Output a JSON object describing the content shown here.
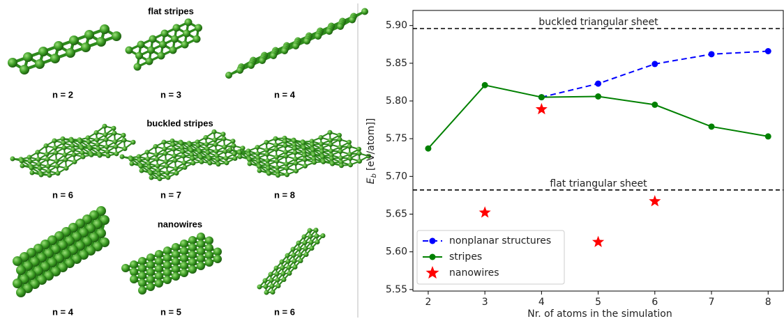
{
  "figure_panels": [
    {
      "title": "flat stripes",
      "labels": [
        "n = 2",
        "n = 3",
        "n = 4"
      ]
    },
    {
      "title": "buckled stripes",
      "labels": [
        "n = 6",
        "n = 7",
        "n = 8"
      ]
    },
    {
      "title": "nanowires",
      "labels": [
        "n = 4",
        "n = 5",
        "n = 6"
      ]
    }
  ],
  "chart_data": {
    "type": "line",
    "xlabel": "Nr. of atoms in the simulation",
    "ylabel": {
      "symbol": "E",
      "subscript": "b",
      "unit": "[eV/atom]]"
    },
    "x": [
      2,
      3,
      4,
      5,
      6,
      7,
      8
    ],
    "xlim": [
      1.73,
      8.28
    ],
    "xticks": [
      2,
      3,
      4,
      5,
      6,
      7,
      8
    ],
    "ylim": [
      5.548,
      5.92
    ],
    "yticks": [
      5.55,
      {
        "value": 5.6,
        "label": "5.60"
      },
      5.65,
      {
        "value": 5.7,
        "label": "5.70"
      },
      5.75,
      {
        "value": 5.8,
        "label": "5.80"
      },
      5.85,
      {
        "value": 5.9,
        "label": "5.90"
      }
    ],
    "reference_lines": [
      {
        "value": 5.896,
        "label": "buckled triangular sheet"
      },
      {
        "value": 5.682,
        "label": "flat triangular sheet"
      }
    ],
    "series": [
      {
        "name": "nonplanar structures",
        "color": "#0000ff",
        "linestyle": "dashed",
        "marker": "circle",
        "values": [
          null,
          null,
          5.805,
          5.823,
          5.849,
          5.862,
          5.866
        ]
      },
      {
        "name": "stripes",
        "color": "#008000",
        "linestyle": "solid",
        "marker": "circle",
        "values": [
          5.737,
          5.821,
          5.805,
          5.806,
          5.795,
          5.766,
          5.753
        ]
      },
      {
        "name": "nanowires",
        "color": "#ff0000",
        "linestyle": "none",
        "marker": "star",
        "values": [
          null,
          5.652,
          5.789,
          5.613,
          5.667,
          null,
          null
        ]
      }
    ],
    "legend": "lower left"
  }
}
